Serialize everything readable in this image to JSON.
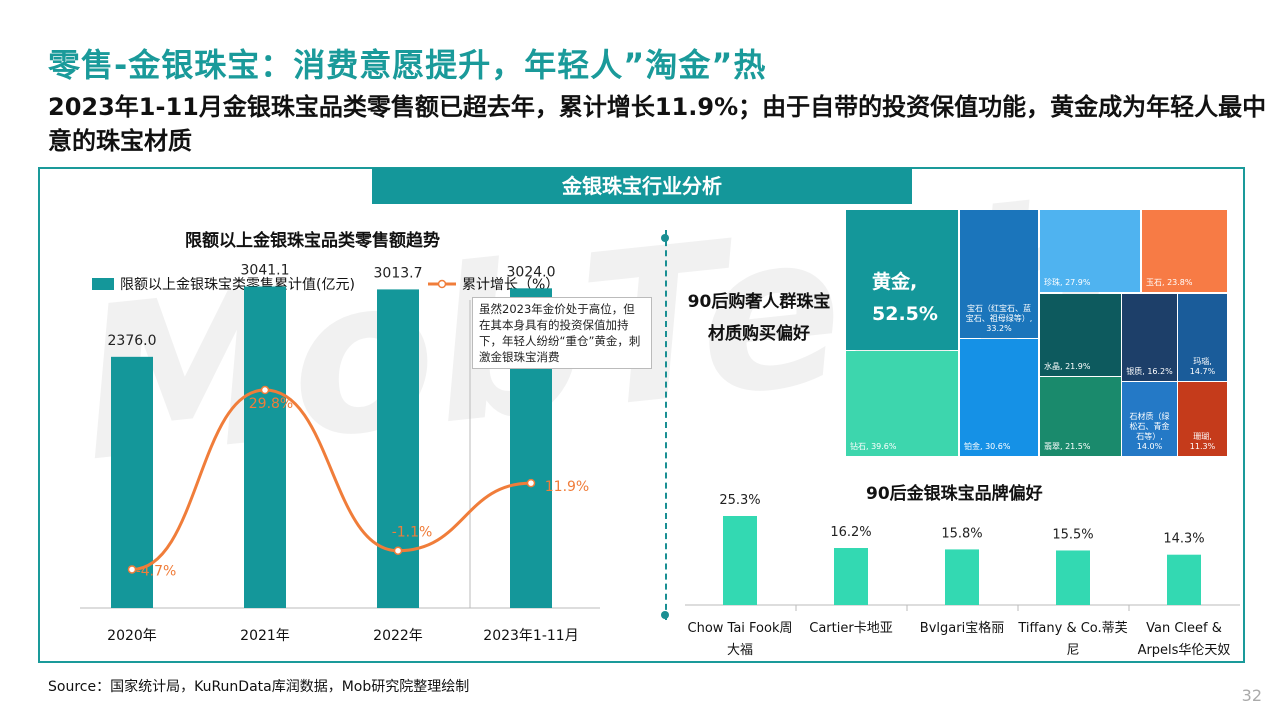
{
  "header": {
    "title": "零售-金银珠宝：消费意愿提升，年轻人”淘金”热",
    "subtitle": "2023年1-11月金银珠宝品类零售额已超去年，累计增长11.9%；由于自带的投资保值功能，黄金成为年轻人最中意的珠宝材质"
  },
  "banner": "金银珠宝行业分析",
  "watermark": "MobTech",
  "chart_data": [
    {
      "type": "bar",
      "title": "限额以上金银珠宝品类零售额趋势",
      "categories": [
        "2020年",
        "2021年",
        "2022年",
        "2023年1-11月"
      ],
      "series": [
        {
          "name": "限额以上金银珠宝类零售累计值(亿元)",
          "values": [
            2376.0,
            3041.1,
            3013.7,
            3024.0
          ],
          "labels": [
            "2376.0",
            "3041.1",
            "3013.7",
            "3024.0"
          ],
          "color": "#14979a"
        },
        {
          "name": "累计增长（%）",
          "type": "line",
          "values": [
            -4.7,
            29.8,
            -1.1,
            11.9
          ],
          "labels": [
            "-4.7%",
            "29.8%",
            "-1.1%",
            "11.9%"
          ],
          "color": "#f07d3a"
        }
      ],
      "annotation": "虽然2023年金价处于高位，但在其本身具有的投资保值加持下，年轻人纷纷“重仓”黄金，刺激金银珠宝消费"
    },
    {
      "type": "treemap",
      "title": "90后购奢人群珠宝材质购买偏好",
      "items": [
        {
          "label": "黄金,",
          "value_label": "52.5%",
          "value": 52.5,
          "color": "#14979a"
        },
        {
          "label": "钻石, 39.6%",
          "value": 39.6,
          "color": "#3dd6ad"
        },
        {
          "label": "宝石（红宝石、蓝宝石、祖母绿等）, 33.2%",
          "value": 33.2,
          "color": "#1b75bb"
        },
        {
          "label": "铂金, 30.6%",
          "value": 30.6,
          "color": "#1591e6"
        },
        {
          "label": "珍珠, 27.9%",
          "value": 27.9,
          "color": "#4fb3f0"
        },
        {
          "label": "玉石, 23.8%",
          "value": 23.8,
          "color": "#f77b45"
        },
        {
          "label": "水晶, 21.9%",
          "value": 21.9,
          "color": "#0d5a5e"
        },
        {
          "label": "翡翠, 21.5%",
          "value": 21.5,
          "color": "#1a8a6c"
        },
        {
          "label": "银质, 16.2%",
          "value": 16.2,
          "color": "#1d3f69"
        },
        {
          "label": "玛瑙, 14.7%",
          "value": 14.7,
          "color": "#1a5c9a"
        },
        {
          "label": "石材质（绿松石、青金石等）, 14.0%",
          "value": 14.0,
          "color": "#2479c6"
        },
        {
          "label": "珊瑚, 11.3%",
          "value": 11.3,
          "color": "#c53b1b"
        }
      ]
    },
    {
      "type": "bar",
      "title": "90后金银珠宝品牌偏好",
      "categories": [
        "Chow Tai Fook周大福",
        "Cartier卡地亚",
        "Bvlgari宝格丽",
        "Tiffany & Co.蒂芙尼",
        "Van Cleef & Arpels华伦天奴"
      ],
      "values": [
        25.3,
        16.2,
        15.8,
        15.5,
        14.3
      ],
      "labels": [
        "25.3%",
        "16.2%",
        "15.8%",
        "15.5%",
        "14.3%"
      ],
      "color": "#33d9b2"
    }
  ],
  "footer": {
    "source": "Source：国家统计局，KuRunData库润数据，Mob研究院整理绘制",
    "page": "32"
  }
}
